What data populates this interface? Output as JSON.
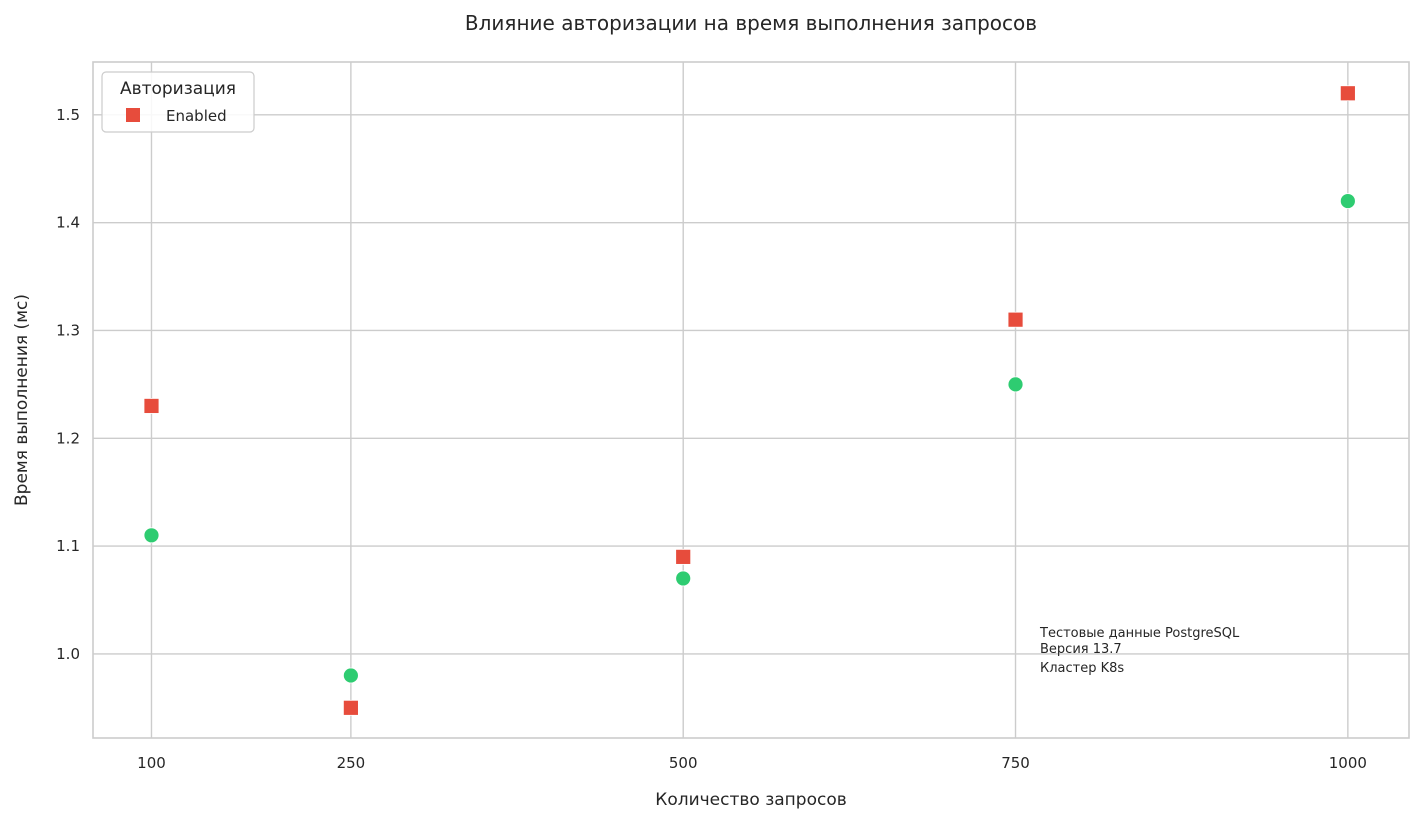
{
  "chart_data": {
    "type": "scatter",
    "title": "Влияние авторизации на время выполнения запросов",
    "xlabel": "Количество запросов",
    "ylabel": "Время выполнения (мс)",
    "x_ticks": [
      100,
      250,
      500,
      750,
      1000
    ],
    "x_tick_labels": [
      "100",
      "250",
      "500",
      "750",
      "1000"
    ],
    "y_ticks": [
      1.0,
      1.1,
      1.2,
      1.3,
      1.4,
      1.5
    ],
    "y_tick_labels": [
      "1.0",
      "1.1",
      "1.2",
      "1.3",
      "1.4",
      "1.5"
    ],
    "xlim": [
      56,
      1046
    ],
    "ylim": [
      0.922,
      1.549
    ],
    "grid": true,
    "legend": {
      "title": "Авторизация",
      "placement": "top-left",
      "entries": [
        "Enabled"
      ]
    },
    "series": [
      {
        "marker": "circle",
        "color": "#2ecc71",
        "x": [
          100,
          250,
          500,
          750,
          1000
        ],
        "y": [
          1.11,
          0.98,
          1.07,
          1.25,
          1.42
        ]
      },
      {
        "name": "Enabled",
        "marker": "square",
        "color": "#e74c3c",
        "x": [
          100,
          250,
          500,
          750,
          1000
        ],
        "y": [
          1.23,
          0.95,
          1.09,
          1.31,
          1.52
        ]
      }
    ],
    "annotation": {
      "lines": [
        "Тестовые данные PostgreSQL",
        "Версия 13.7",
        "Кластер K8s"
      ],
      "x": 767,
      "y": 1.012
    }
  }
}
